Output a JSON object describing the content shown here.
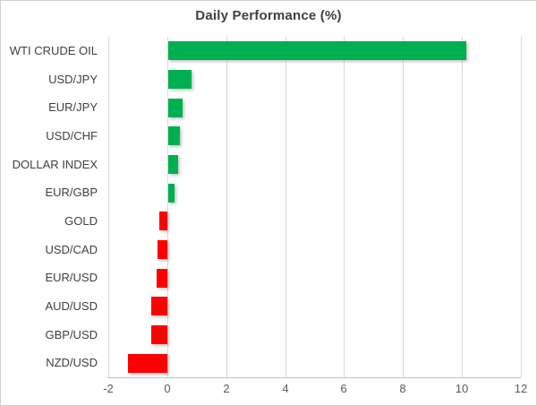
{
  "chart": {
    "title": "Daily Performance (%)"
  },
  "chart_data": {
    "type": "bar",
    "orientation": "horizontal",
    "title": "Daily Performance (%)",
    "categories": [
      "WTI CRUDE OIL",
      "USD/JPY",
      "EUR/JPY",
      "USD/CHF",
      "DOLLAR INDEX",
      "EUR/GBP",
      "GOLD",
      "USD/CAD",
      "EUR/USD",
      "AUD/USD",
      "GBP/USD",
      "NZD/USD"
    ],
    "values": [
      10.1,
      0.8,
      0.5,
      0.4,
      0.33,
      0.2,
      -0.26,
      -0.32,
      -0.36,
      -0.54,
      -0.54,
      -1.34
    ],
    "xlabel": "",
    "ylabel": "",
    "xlim": [
      -2,
      12
    ],
    "xticks": [
      -2,
      0,
      2,
      4,
      6,
      8,
      10,
      12
    ],
    "grid": true,
    "legend": false,
    "colors": {
      "positive_bar": "#00B050",
      "negative_bar": "#FF0000",
      "gridline": "#D9D9D9",
      "axis_line": "#BFBFBF",
      "title_text": "#404040",
      "category_text": "#404040",
      "tick_text": "#595959"
    }
  }
}
